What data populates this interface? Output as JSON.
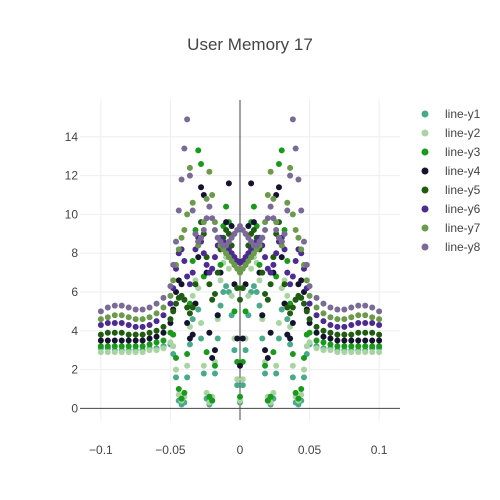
{
  "chart_data": {
    "type": "scatter",
    "title": "User Memory 17",
    "xlabel": "",
    "ylabel": "",
    "xlim": [
      -0.115,
      0.115
    ],
    "ylim": [
      -0.6,
      15.9
    ],
    "x_ticks": [
      -0.1,
      -0.05,
      0,
      0.05,
      0.1
    ],
    "x_tick_labels": [
      "−0.1",
      "−0.05",
      "0",
      "0.05",
      "0.1"
    ],
    "y_ticks": [
      0,
      2,
      4,
      6,
      8,
      10,
      12,
      14
    ],
    "y_tick_labels": [
      "0",
      "2",
      "4",
      "6",
      "8",
      "10",
      "12",
      "14"
    ],
    "grid": true,
    "legend_position": "top-right",
    "x": [
      -0.1,
      -0.095,
      -0.09,
      -0.085,
      -0.08,
      -0.075,
      -0.07,
      -0.065,
      -0.06,
      -0.055,
      -0.05,
      -0.048,
      -0.046,
      -0.044,
      -0.042,
      -0.04,
      -0.038,
      -0.036,
      -0.034,
      -0.032,
      -0.03,
      -0.028,
      -0.026,
      -0.024,
      -0.022,
      -0.02,
      -0.018,
      -0.016,
      -0.014,
      -0.012,
      -0.01,
      -0.008,
      -0.006,
      -0.004,
      -0.002,
      0,
      0.002,
      0.004,
      0.006,
      0.008,
      0.01,
      0.012,
      0.014,
      0.016,
      0.018,
      0.02,
      0.022,
      0.024,
      0.026,
      0.028,
      0.03,
      0.032,
      0.034,
      0.036,
      0.038,
      0.04,
      0.042,
      0.044,
      0.046,
      0.048,
      0.05,
      0.055,
      0.06,
      0.065,
      0.07,
      0.075,
      0.08,
      0.085,
      0.09,
      0.095,
      0.1
    ],
    "series": [
      {
        "name": "line-y1",
        "color": "#4aa98a",
        "values": [
          3.1,
          3.1,
          3.0,
          3.0,
          3.0,
          3.0,
          3.0,
          3.1,
          3.1,
          3.2,
          3.3,
          2.8,
          1.6,
          0.4,
          0.2,
          0.3,
          1.6,
          3.3,
          4.6,
          5.4,
          5.1,
          3.6,
          1.8,
          0.5,
          0.2,
          0.4,
          1.8,
          3.6,
          5.3,
          6.0,
          6.3,
          6.0,
          4.8,
          3.0,
          1.2,
          0.3,
          1.2,
          3.0,
          4.8,
          6.0,
          6.3,
          6.0,
          5.3,
          3.6,
          1.8,
          0.4,
          0.2,
          0.5,
          1.8,
          3.6,
          5.1,
          5.4,
          4.6,
          3.3,
          1.6,
          0.3,
          0.2,
          0.4,
          1.6,
          2.8,
          3.3,
          3.2,
          3.1,
          3.1,
          3.0,
          3.0,
          3.0,
          3.0,
          3.0,
          3.1,
          3.1
        ]
      },
      {
        "name": "line-y2",
        "color": "#a9d4a1",
        "values": [
          2.9,
          2.9,
          2.9,
          2.9,
          2.9,
          2.9,
          2.9,
          3.0,
          3.0,
          3.1,
          3.4,
          3.2,
          2.0,
          0.7,
          0.4,
          0.6,
          2.2,
          4.2,
          5.8,
          6.6,
          6.2,
          4.4,
          2.2,
          0.8,
          0.3,
          0.6,
          2.4,
          4.6,
          6.6,
          7.5,
          7.8,
          7.2,
          5.8,
          3.6,
          1.5,
          0.4,
          1.5,
          3.6,
          5.8,
          7.2,
          7.8,
          7.5,
          6.6,
          4.6,
          2.4,
          0.6,
          0.3,
          0.8,
          2.2,
          4.4,
          6.2,
          6.6,
          5.8,
          4.2,
          2.2,
          0.6,
          0.4,
          0.7,
          2.0,
          3.2,
          3.4,
          3.1,
          3.0,
          3.0,
          2.9,
          2.9,
          2.9,
          2.9,
          2.9,
          2.9,
          2.9
        ]
      },
      {
        "name": "line-y3",
        "color": "#1a9a1a",
        "values": [
          3.2,
          3.2,
          3.2,
          3.2,
          3.2,
          3.2,
          3.2,
          3.3,
          3.4,
          3.5,
          3.9,
          3.8,
          2.6,
          1.0,
          0.5,
          0.8,
          2.8,
          5.4,
          7.6,
          9.2,
          13.3,
          12.6,
          6.8,
          2.9,
          0.6,
          0.4,
          2.2,
          4.8,
          7.4,
          9.4,
          10.4,
          9.6,
          7.8,
          5.0,
          2.4,
          0.6,
          2.4,
          5.0,
          7.8,
          9.6,
          10.4,
          9.4,
          7.4,
          4.8,
          2.2,
          0.4,
          0.6,
          2.9,
          6.8,
          12.6,
          13.3,
          9.2,
          7.6,
          5.4,
          2.8,
          0.8,
          0.5,
          1.0,
          2.6,
          3.8,
          3.9,
          3.5,
          3.4,
          3.3,
          3.2,
          3.2,
          3.2,
          3.2,
          3.2,
          3.2,
          3.2
        ]
      },
      {
        "name": "line-y4",
        "color": "#14142e",
        "values": [
          3.5,
          3.5,
          3.5,
          3.5,
          3.5,
          3.5,
          3.5,
          3.6,
          3.7,
          3.9,
          4.4,
          5.1,
          6.0,
          6.6,
          6.4,
          5.6,
          4.4,
          3.6,
          3.8,
          5.4,
          7.8,
          11.4,
          11.0,
          7.0,
          3.9,
          2.6,
          3.0,
          4.8,
          7.0,
          8.6,
          9.6,
          11.6,
          9.4,
          6.4,
          3.6,
          2.2,
          3.6,
          6.4,
          9.4,
          11.6,
          9.6,
          8.6,
          7.0,
          4.8,
          3.0,
          2.6,
          3.9,
          7.0,
          11.0,
          11.4,
          7.8,
          5.4,
          3.8,
          3.6,
          4.4,
          5.6,
          6.4,
          6.6,
          6.0,
          5.1,
          4.4,
          3.9,
          3.7,
          3.6,
          3.5,
          3.5,
          3.5,
          3.5,
          3.5,
          3.5,
          3.5
        ]
      },
      {
        "name": "line-y5",
        "color": "#1f5c12",
        "values": [
          3.8,
          3.9,
          3.9,
          3.9,
          3.8,
          3.8,
          3.8,
          3.9,
          4.0,
          4.2,
          4.6,
          5.0,
          5.4,
          5.7,
          5.8,
          5.6,
          5.2,
          4.9,
          5.2,
          6.4,
          8.6,
          9.6,
          9.0,
          7.8,
          6.4,
          5.6,
          5.9,
          7.0,
          8.2,
          8.8,
          9.2,
          9.0,
          8.4,
          7.4,
          6.2,
          5.6,
          6.2,
          7.4,
          8.4,
          9.0,
          9.2,
          8.8,
          8.2,
          7.0,
          5.9,
          5.6,
          6.4,
          7.8,
          9.0,
          9.6,
          8.6,
          6.4,
          5.2,
          4.9,
          5.2,
          5.6,
          5.8,
          5.7,
          5.4,
          5.0,
          4.6,
          4.2,
          4.0,
          3.9,
          3.8,
          3.8,
          3.8,
          3.9,
          3.9,
          3.9,
          3.8
        ]
      },
      {
        "name": "line-y6",
        "color": "#4a2b8f",
        "values": [
          4.3,
          4.4,
          4.4,
          4.4,
          4.3,
          4.2,
          4.2,
          4.3,
          4.5,
          4.8,
          5.4,
          6.2,
          7.2,
          8.0,
          8.2,
          7.6,
          6.8,
          6.4,
          7.0,
          8.2,
          8.8,
          8.6,
          8.0,
          7.4,
          7.0,
          7.2,
          7.8,
          8.4,
          8.8,
          8.6,
          8.4,
          8.2,
          8.0,
          7.8,
          7.6,
          7.5,
          7.6,
          7.8,
          8.0,
          8.2,
          8.4,
          8.6,
          8.8,
          8.4,
          7.8,
          7.2,
          7.0,
          7.4,
          8.0,
          8.6,
          8.8,
          8.2,
          7.0,
          6.4,
          6.8,
          7.6,
          8.2,
          8.0,
          7.2,
          6.2,
          5.4,
          4.8,
          4.5,
          4.3,
          4.2,
          4.2,
          4.3,
          4.4,
          4.4,
          4.4,
          4.3
        ]
      },
      {
        "name": "line-y7",
        "color": "#6a9a4a",
        "values": [
          4.6,
          4.7,
          4.8,
          4.8,
          4.7,
          4.6,
          4.6,
          4.7,
          4.9,
          5.2,
          5.8,
          6.6,
          7.4,
          8.2,
          8.8,
          9.2,
          10.0,
          12.4,
          10.6,
          9.0,
          8.4,
          8.8,
          9.6,
          10.8,
          12.2,
          11.0,
          9.6,
          8.8,
          8.4,
          8.2,
          8.0,
          7.8,
          7.6,
          7.4,
          7.2,
          7.0,
          7.2,
          7.4,
          7.6,
          7.8,
          8.0,
          8.2,
          8.4,
          8.8,
          9.6,
          11.0,
          12.2,
          10.8,
          9.6,
          8.8,
          8.4,
          9.0,
          10.6,
          12.4,
          10.0,
          9.2,
          8.8,
          8.2,
          7.4,
          6.6,
          5.8,
          5.2,
          4.9,
          4.7,
          4.6,
          4.6,
          4.7,
          4.8,
          4.8,
          4.7,
          4.6
        ]
      },
      {
        "name": "line-y8",
        "color": "#7a6a96",
        "values": [
          5.0,
          5.2,
          5.3,
          5.3,
          5.2,
          5.1,
          5.1,
          5.2,
          5.4,
          5.7,
          6.3,
          7.4,
          8.6,
          10.2,
          11.8,
          13.4,
          14.9,
          12.0,
          10.2,
          9.0,
          8.6,
          8.8,
          9.2,
          9.8,
          10.4,
          9.8,
          9.2,
          8.8,
          8.6,
          8.4,
          8.4,
          8.6,
          8.8,
          9.0,
          9.2,
          9.4,
          9.2,
          9.0,
          8.8,
          8.6,
          8.4,
          8.4,
          8.6,
          8.8,
          9.2,
          9.8,
          10.4,
          9.8,
          9.2,
          8.8,
          8.6,
          9.0,
          10.2,
          12.0,
          14.9,
          13.4,
          11.8,
          10.2,
          8.6,
          7.4,
          6.3,
          5.7,
          5.4,
          5.2,
          5.1,
          5.1,
          5.2,
          5.3,
          5.3,
          5.2,
          5.0
        ]
      }
    ]
  }
}
